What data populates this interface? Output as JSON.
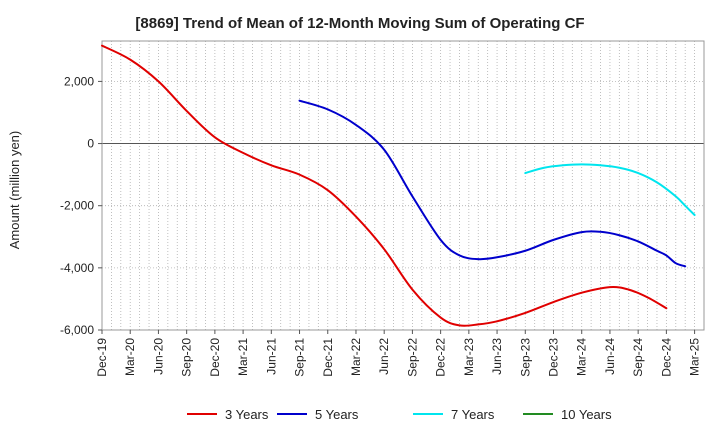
{
  "chart_data": {
    "type": "line",
    "title": "[8869]  Trend of Mean of 12-Month Moving Sum of Operating CF",
    "xlabel": "",
    "ylabel": "Amount (million yen)",
    "ylim": [
      -6000,
      3300
    ],
    "yticks": [
      2000,
      0,
      -2000,
      -4000,
      -6000
    ],
    "ytick_labels": [
      "2,000",
      "0",
      "-2,000",
      "-4,000",
      "-6,000"
    ],
    "xtick_labels": [
      "Dec-19",
      "Mar-20",
      "Jun-20",
      "Sep-20",
      "Dec-20",
      "Mar-21",
      "Jun-21",
      "Sep-21",
      "Dec-21",
      "Mar-22",
      "Jun-22",
      "Sep-22",
      "Dec-22",
      "Mar-23",
      "Jun-23",
      "Sep-23",
      "Dec-23",
      "Mar-24",
      "Jun-24",
      "Sep-24",
      "Dec-24",
      "Mar-25"
    ],
    "x_months_total": 64,
    "grid": true,
    "legend_position": "bottom",
    "series": [
      {
        "name": "3 Years",
        "color": "#e00000",
        "points": [
          [
            0,
            3150
          ],
          [
            3,
            2700
          ],
          [
            6,
            2000
          ],
          [
            9,
            1050
          ],
          [
            12,
            200
          ],
          [
            15,
            -300
          ],
          [
            18,
            -700
          ],
          [
            21,
            -1000
          ],
          [
            24,
            -1500
          ],
          [
            27,
            -2350
          ],
          [
            30,
            -3400
          ],
          [
            33,
            -4700
          ],
          [
            36,
            -5600
          ],
          [
            38,
            -5850
          ],
          [
            40,
            -5820
          ],
          [
            42,
            -5720
          ],
          [
            45,
            -5450
          ],
          [
            48,
            -5100
          ],
          [
            51,
            -4800
          ],
          [
            54,
            -4620
          ],
          [
            56,
            -4700
          ],
          [
            58,
            -4950
          ],
          [
            60,
            -5300
          ]
        ]
      },
      {
        "name": "5 Years",
        "color": "#0000cc",
        "points": [
          [
            21,
            1380
          ],
          [
            24,
            1100
          ],
          [
            27,
            600
          ],
          [
            30,
            -200
          ],
          [
            33,
            -1700
          ],
          [
            36,
            -3100
          ],
          [
            38,
            -3600
          ],
          [
            40,
            -3720
          ],
          [
            42,
            -3660
          ],
          [
            45,
            -3450
          ],
          [
            48,
            -3100
          ],
          [
            51,
            -2850
          ],
          [
            53,
            -2840
          ],
          [
            55,
            -2950
          ],
          [
            57,
            -3150
          ],
          [
            59,
            -3450
          ],
          [
            60,
            -3600
          ],
          [
            61,
            -3850
          ],
          [
            62,
            -3950
          ]
        ]
      },
      {
        "name": "7 Years",
        "color": "#00e5ee",
        "points": [
          [
            45,
            -950
          ],
          [
            47,
            -780
          ],
          [
            49,
            -700
          ],
          [
            51,
            -670
          ],
          [
            53,
            -700
          ],
          [
            55,
            -780
          ],
          [
            57,
            -950
          ],
          [
            59,
            -1250
          ],
          [
            61,
            -1700
          ],
          [
            62,
            -2000
          ],
          [
            63,
            -2300
          ]
        ]
      },
      {
        "name": "10 Years",
        "color": "#228b22",
        "points": []
      }
    ]
  }
}
